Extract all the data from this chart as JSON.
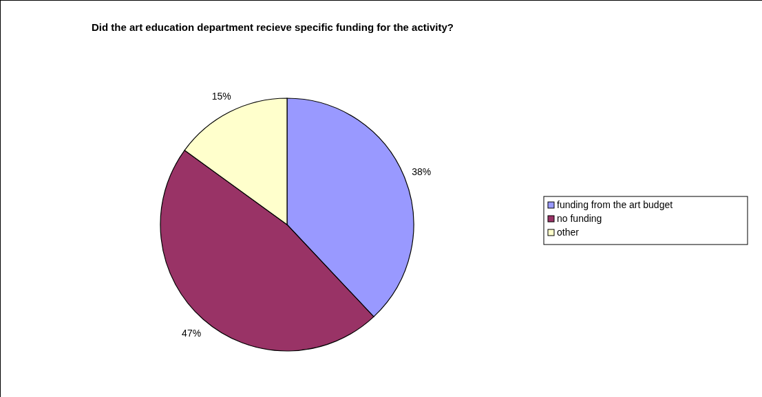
{
  "chart_data": {
    "type": "pie",
    "title": "Did the art education department recieve specific funding for the activity?",
    "categories": [
      "funding from the art budget",
      "no funding",
      "other"
    ],
    "values": [
      38,
      47,
      15
    ],
    "value_labels": [
      "38%",
      "47%",
      "15%"
    ],
    "colors": [
      "#9999ff",
      "#993366",
      "#ffffcc"
    ],
    "legend": "right"
  }
}
